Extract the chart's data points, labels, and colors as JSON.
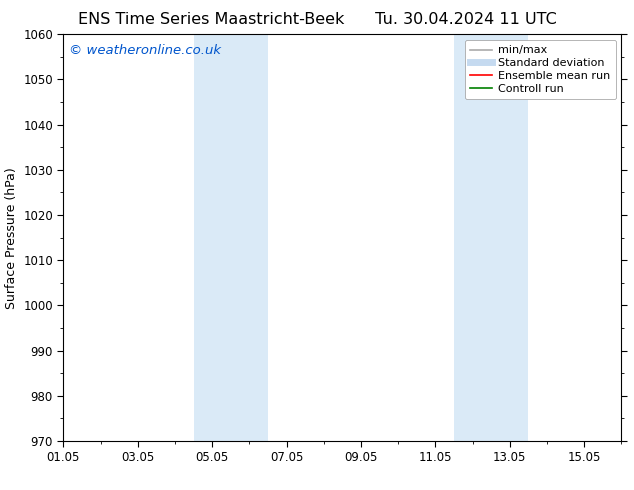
{
  "title_left": "ENS Time Series Maastricht-Beek",
  "title_right": "Tu. 30.04.2024 11 UTC",
  "ylabel": "Surface Pressure (hPa)",
  "ylim": [
    970,
    1060
  ],
  "yticks": [
    970,
    980,
    990,
    1000,
    1010,
    1020,
    1030,
    1040,
    1050,
    1060
  ],
  "xtick_labels": [
    "01.05",
    "03.05",
    "05.05",
    "07.05",
    "09.05",
    "11.05",
    "13.05",
    "15.05"
  ],
  "xtick_positions": [
    0,
    2,
    4,
    6,
    8,
    10,
    12,
    14
  ],
  "xlim": [
    0,
    15
  ],
  "shaded_bands": [
    {
      "xmin": 3.5,
      "xmax": 5.5,
      "color": "#daeaf7"
    },
    {
      "xmin": 10.5,
      "xmax": 12.5,
      "color": "#daeaf7"
    }
  ],
  "watermark": "© weatheronline.co.uk",
  "watermark_color": "#0055cc",
  "background_color": "#ffffff",
  "legend_items": [
    {
      "label": "min/max",
      "color": "#aaaaaa",
      "lw": 1.2,
      "style": "solid"
    },
    {
      "label": "Standard deviation",
      "color": "#c5daf0",
      "lw": 5,
      "style": "solid"
    },
    {
      "label": "Ensemble mean run",
      "color": "#ff0000",
      "lw": 1.2,
      "style": "solid"
    },
    {
      "label": "Controll run",
      "color": "#008000",
      "lw": 1.2,
      "style": "solid"
    }
  ],
  "title_fontsize": 11.5,
  "tick_fontsize": 8.5,
  "ylabel_fontsize": 9,
  "watermark_fontsize": 9.5,
  "legend_fontsize": 8
}
